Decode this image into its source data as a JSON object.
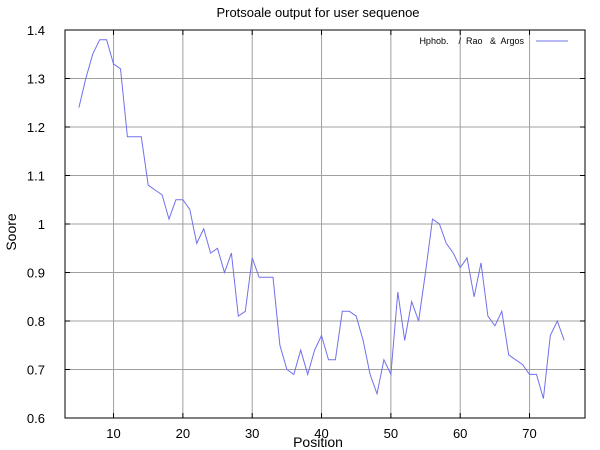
{
  "chart_data": {
    "type": "line",
    "title": "Protsoale output for user sequenoe",
    "xlabel": "Position",
    "ylabel": "Soore",
    "xlim": [
      3,
      78
    ],
    "ylim": [
      0.6,
      1.4
    ],
    "xticks": [
      10,
      20,
      30,
      40,
      50,
      60,
      70
    ],
    "yticks": [
      0.6,
      0.7,
      0.8,
      0.9,
      1.0,
      1.1,
      1.2,
      1.3,
      1.4
    ],
    "ytick_labels": [
      "0.6",
      "0.7",
      "0.8",
      "0.9",
      "1",
      "1.1",
      "1.2",
      "1.3",
      "1.4"
    ],
    "grid": true,
    "legend_position": "top-right",
    "series": [
      {
        "name": "Hphob.    /  Rao   &  Argos",
        "color": "#7070ee",
        "x": [
          5,
          6,
          7,
          8,
          9,
          10,
          11,
          12,
          13,
          14,
          15,
          16,
          17,
          18,
          19,
          20,
          21,
          22,
          23,
          24,
          25,
          26,
          27,
          28,
          29,
          30,
          31,
          32,
          33,
          34,
          35,
          36,
          37,
          38,
          39,
          40,
          41,
          42,
          43,
          44,
          45,
          46,
          47,
          48,
          49,
          50,
          51,
          52,
          53,
          54,
          55,
          56,
          57,
          58,
          59,
          60,
          61,
          62,
          63,
          64,
          65,
          66,
          67,
          68,
          69,
          70,
          71,
          72,
          73,
          74,
          75
        ],
        "y": [
          1.24,
          1.3,
          1.35,
          1.38,
          1.38,
          1.33,
          1.32,
          1.18,
          1.18,
          1.18,
          1.08,
          1.07,
          1.06,
          1.01,
          1.05,
          1.05,
          1.03,
          0.96,
          0.99,
          0.94,
          0.95,
          0.9,
          0.94,
          0.81,
          0.82,
          0.93,
          0.89,
          0.89,
          0.89,
          0.75,
          0.7,
          0.69,
          0.74,
          0.69,
          0.74,
          0.77,
          0.72,
          0.72,
          0.82,
          0.82,
          0.81,
          0.76,
          0.69,
          0.65,
          0.72,
          0.69,
          0.86,
          0.76,
          0.84,
          0.8,
          0.9,
          1.01,
          1.0,
          0.96,
          0.94,
          0.91,
          0.93,
          0.85,
          0.92,
          0.81,
          0.79,
          0.82,
          0.73,
          0.72,
          0.71,
          0.69,
          0.69,
          0.64,
          0.77,
          0.8,
          0.76
        ]
      }
    ]
  }
}
